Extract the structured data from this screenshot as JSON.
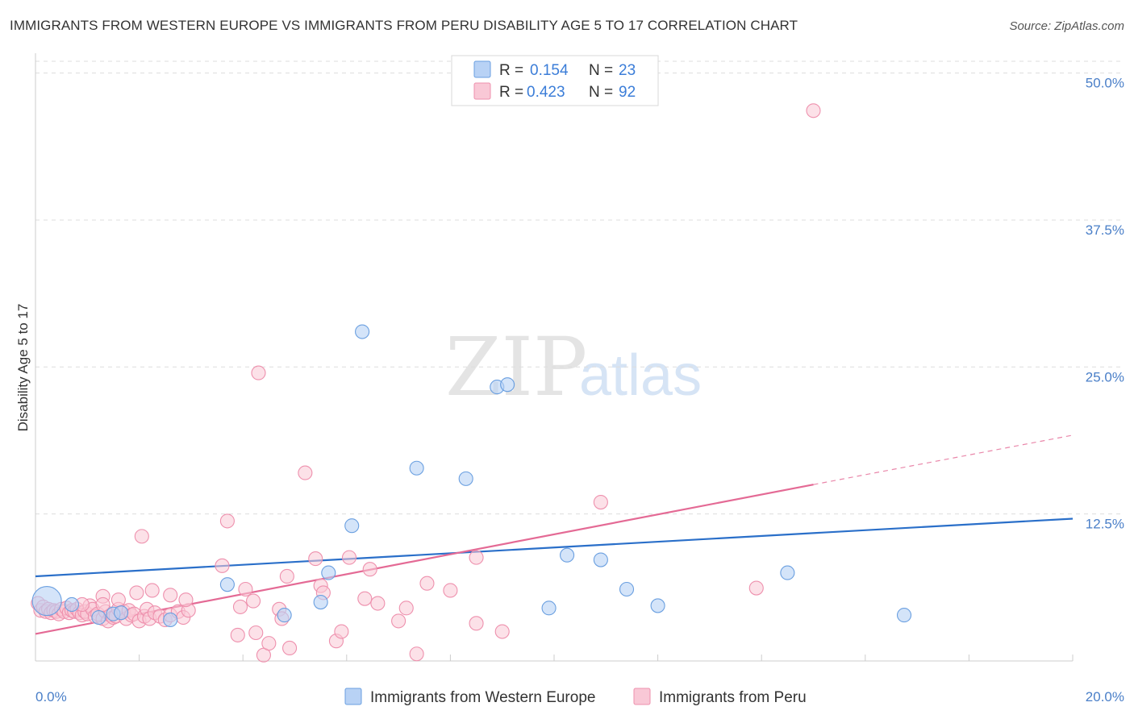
{
  "title": "IMMIGRANTS FROM WESTERN EUROPE VS IMMIGRANTS FROM PERU DISABILITY AGE 5 TO 17 CORRELATION CHART",
  "source": "Source: ZipAtlas.com",
  "watermark": {
    "zip": "ZIP",
    "atlas": "atlas"
  },
  "colors": {
    "blue_fill": "#b8d2f5",
    "blue_stroke": "#6a9fe0",
    "blue_line": "#2a6fc9",
    "pink_fill": "#f9c8d6",
    "pink_stroke": "#ee90ad",
    "pink_line": "#e46a95",
    "grid": "#dddddd",
    "tick_label": "#4a7fc8"
  },
  "legend": {
    "rows": [
      {
        "r_label": "R =",
        "r_value": "0.154",
        "n_label": "N =",
        "n_value": "23"
      },
      {
        "r_label": "R =",
        "r_value": "0.423",
        "n_label": "N =",
        "n_value": "92"
      }
    ]
  },
  "chart_data": {
    "type": "scatter",
    "title": "IMMIGRANTS FROM WESTERN EUROPE VS IMMIGRANTS FROM PERU DISABILITY AGE 5 TO 17 CORRELATION CHART",
    "xlabel": "",
    "ylabel": "Disability Age 5 to 17",
    "xlim": [
      0,
      20
    ],
    "ylim": [
      0,
      51
    ],
    "x_tick_labels": [
      "0.0%",
      "20.0%"
    ],
    "y_ticks": [
      12.5,
      25.0,
      37.5,
      50.0
    ],
    "y_tick_labels": [
      "12.5%",
      "25.0%",
      "37.5%",
      "50.0%"
    ],
    "grid": true,
    "legend_position": "top-center",
    "series": [
      {
        "name": "Immigrants from Western Europe",
        "r": 0.154,
        "n": 23,
        "trend": {
          "x": [
            0,
            20
          ],
          "y": [
            7.2,
            12.1
          ]
        },
        "points": [
          {
            "x": 0.22,
            "y": 5.1,
            "big": true
          },
          {
            "x": 0.7,
            "y": 4.8
          },
          {
            "x": 1.22,
            "y": 3.7
          },
          {
            "x": 1.5,
            "y": 4.0
          },
          {
            "x": 1.65,
            "y": 4.1
          },
          {
            "x": 2.6,
            "y": 3.5
          },
          {
            "x": 3.7,
            "y": 6.5
          },
          {
            "x": 4.8,
            "y": 3.9
          },
          {
            "x": 5.5,
            "y": 5.0
          },
          {
            "x": 5.65,
            "y": 7.5
          },
          {
            "x": 6.1,
            "y": 11.5
          },
          {
            "x": 6.3,
            "y": 28.0
          },
          {
            "x": 7.35,
            "y": 16.4
          },
          {
            "x": 8.3,
            "y": 15.5
          },
          {
            "x": 8.9,
            "y": 23.3
          },
          {
            "x": 9.1,
            "y": 23.5
          },
          {
            "x": 9.9,
            "y": 4.5
          },
          {
            "x": 10.25,
            "y": 9.0
          },
          {
            "x": 10.9,
            "y": 8.6
          },
          {
            "x": 11.4,
            "y": 6.1
          },
          {
            "x": 12.0,
            "y": 4.7
          },
          {
            "x": 14.5,
            "y": 7.5
          },
          {
            "x": 16.75,
            "y": 3.9
          }
        ]
      },
      {
        "name": "Immigrants from Peru",
        "r": 0.423,
        "n": 92,
        "trend": {
          "x": [
            0,
            15
          ],
          "y": [
            2.3,
            15.0
          ]
        },
        "trend_dashed": {
          "x": [
            15,
            20
          ],
          "y": [
            15.0,
            19.2
          ]
        },
        "points": [
          {
            "x": 0.05,
            "y": 4.9
          },
          {
            "x": 0.1,
            "y": 4.3
          },
          {
            "x": 0.15,
            "y": 4.6
          },
          {
            "x": 0.2,
            "y": 4.2
          },
          {
            "x": 0.25,
            "y": 4.4
          },
          {
            "x": 0.3,
            "y": 4.1
          },
          {
            "x": 0.35,
            "y": 4.3
          },
          {
            "x": 0.4,
            "y": 4.2
          },
          {
            "x": 0.45,
            "y": 4.0
          },
          {
            "x": 0.5,
            "y": 4.4
          },
          {
            "x": 0.55,
            "y": 4.2
          },
          {
            "x": 0.6,
            "y": 4.5
          },
          {
            "x": 0.65,
            "y": 4.1
          },
          {
            "x": 0.7,
            "y": 4.3
          },
          {
            "x": 0.75,
            "y": 4.2
          },
          {
            "x": 0.8,
            "y": 4.4
          },
          {
            "x": 0.85,
            "y": 4.1
          },
          {
            "x": 0.9,
            "y": 3.9
          },
          {
            "x": 0.95,
            "y": 4.2
          },
          {
            "x": 1.0,
            "y": 4.0
          },
          {
            "x": 1.05,
            "y": 4.7
          },
          {
            "x": 1.1,
            "y": 4.4
          },
          {
            "x": 1.15,
            "y": 3.8
          },
          {
            "x": 1.2,
            "y": 4.0
          },
          {
            "x": 1.3,
            "y": 3.6
          },
          {
            "x": 1.35,
            "y": 4.2
          },
          {
            "x": 1.4,
            "y": 3.4
          },
          {
            "x": 1.45,
            "y": 3.9
          },
          {
            "x": 1.5,
            "y": 3.7
          },
          {
            "x": 1.55,
            "y": 3.8
          },
          {
            "x": 1.6,
            "y": 4.4
          },
          {
            "x": 1.7,
            "y": 4.2
          },
          {
            "x": 1.75,
            "y": 3.6
          },
          {
            "x": 1.8,
            "y": 4.3
          },
          {
            "x": 1.85,
            "y": 3.9
          },
          {
            "x": 1.9,
            "y": 4.0
          },
          {
            "x": 2.0,
            "y": 3.4
          },
          {
            "x": 2.1,
            "y": 3.8
          },
          {
            "x": 2.15,
            "y": 4.4
          },
          {
            "x": 2.2,
            "y": 3.6
          },
          {
            "x": 2.3,
            "y": 4.1
          },
          {
            "x": 2.4,
            "y": 3.8
          },
          {
            "x": 2.5,
            "y": 3.5
          },
          {
            "x": 2.6,
            "y": 3.9
          },
          {
            "x": 2.75,
            "y": 4.2
          },
          {
            "x": 2.85,
            "y": 3.7
          },
          {
            "x": 2.95,
            "y": 4.3
          },
          {
            "x": 1.3,
            "y": 5.5
          },
          {
            "x": 1.6,
            "y": 5.2
          },
          {
            "x": 1.95,
            "y": 5.8
          },
          {
            "x": 2.6,
            "y": 5.6
          },
          {
            "x": 2.25,
            "y": 6.0
          },
          {
            "x": 1.3,
            "y": 4.8
          },
          {
            "x": 0.9,
            "y": 4.8
          },
          {
            "x": 2.05,
            "y": 10.6
          },
          {
            "x": 2.9,
            "y": 5.2
          },
          {
            "x": 3.6,
            "y": 8.1
          },
          {
            "x": 3.7,
            "y": 11.9
          },
          {
            "x": 3.9,
            "y": 2.2
          },
          {
            "x": 3.95,
            "y": 4.6
          },
          {
            "x": 4.05,
            "y": 6.1
          },
          {
            "x": 4.2,
            "y": 5.1
          },
          {
            "x": 4.25,
            "y": 2.4
          },
          {
            "x": 4.3,
            "y": 24.5
          },
          {
            "x": 4.4,
            "y": 0.5
          },
          {
            "x": 4.5,
            "y": 1.5
          },
          {
            "x": 4.7,
            "y": 4.4
          },
          {
            "x": 4.75,
            "y": 3.6
          },
          {
            "x": 4.85,
            "y": 7.2
          },
          {
            "x": 4.9,
            "y": 1.1
          },
          {
            "x": 5.2,
            "y": 16.0
          },
          {
            "x": 5.4,
            "y": 8.7
          },
          {
            "x": 5.5,
            "y": 6.4
          },
          {
            "x": 5.55,
            "y": 5.8
          },
          {
            "x": 5.8,
            "y": 1.7
          },
          {
            "x": 5.9,
            "y": 2.5
          },
          {
            "x": 6.05,
            "y": 8.8
          },
          {
            "x": 6.35,
            "y": 5.3
          },
          {
            "x": 6.6,
            "y": 4.9
          },
          {
            "x": 6.45,
            "y": 7.8
          },
          {
            "x": 7.0,
            "y": 3.4
          },
          {
            "x": 7.15,
            "y": 4.5
          },
          {
            "x": 7.35,
            "y": 0.6
          },
          {
            "x": 7.55,
            "y": 6.6
          },
          {
            "x": 8.0,
            "y": 6.0
          },
          {
            "x": 8.5,
            "y": 8.8
          },
          {
            "x": 8.5,
            "y": 3.2
          },
          {
            "x": 9.0,
            "y": 2.5
          },
          {
            "x": 10.9,
            "y": 13.5
          },
          {
            "x": 13.9,
            "y": 6.2
          },
          {
            "x": 15.0,
            "y": 46.8
          }
        ]
      }
    ]
  },
  "bottom_legend": [
    {
      "label": "Immigrants from Western Europe"
    },
    {
      "label": "Immigrants from Peru"
    }
  ]
}
